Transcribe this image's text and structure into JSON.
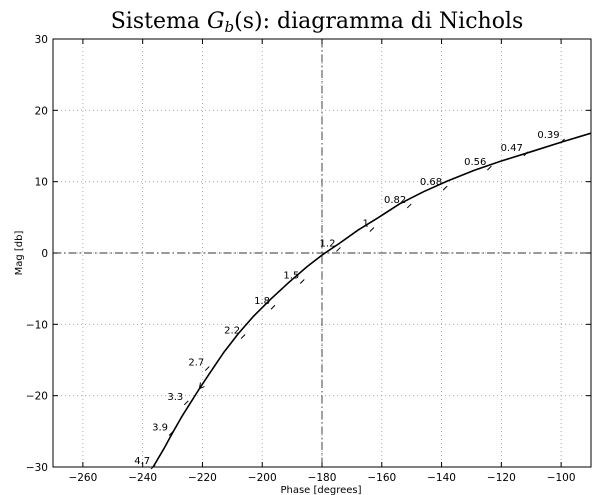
{
  "chart_data": {
    "type": "line",
    "title_prefix": "Sistema ",
    "title_var": "G",
    "title_sub": "b",
    "title_suffix": "(s): diagramma di Nichols",
    "xlabel": "Phase [degrees]",
    "ylabel": "Mag [db]",
    "xlim": [
      -270,
      -90
    ],
    "ylim": [
      -30,
      30
    ],
    "xticks": [
      -260,
      -240,
      -220,
      -200,
      -180,
      -160,
      -140,
      -120,
      -100
    ],
    "yticks": [
      -30,
      -20,
      -10,
      0,
      10,
      20,
      30
    ],
    "xtick_labels": [
      "−260",
      "−240",
      "−220",
      "−200",
      "−180",
      "−160",
      "−140",
      "−120",
      "−100"
    ],
    "ytick_labels": [
      "−30",
      "−20",
      "−10",
      "0",
      "10",
      "20",
      "30"
    ],
    "grid": true,
    "crosshair": {
      "x": -180,
      "y": 0
    },
    "series": [
      {
        "x": [
          -236.5,
          -233,
          -230,
          -227,
          -224,
          -221,
          -217,
          -213,
          -208,
          -203,
          -197,
          -191,
          -185,
          -180,
          -174,
          -168,
          -161,
          -154,
          -146,
          -138,
          -129,
          -120,
          -110,
          -99.5,
          -90
        ],
        "y": [
          -30,
          -27.5,
          -25.2,
          -23.0,
          -21.0,
          -19.0,
          -16.5,
          -14.0,
          -11.3,
          -8.9,
          -6.4,
          -4.1,
          -1.9,
          -0.3,
          1.4,
          3.2,
          5.0,
          6.9,
          8.6,
          10.1,
          11.6,
          12.9,
          14.2,
          15.6,
          16.8
        ]
      }
    ],
    "frequency_labels": [
      {
        "text": "4.7",
        "x": -236.5,
        "y": -30
      },
      {
        "text": "3.9",
        "x": -230.5,
        "y": -25.3
      },
      {
        "text": "3.3",
        "x": -225.4,
        "y": -21.0
      },
      {
        "text": "2.7",
        "x": -218.4,
        "y": -16.2
      },
      {
        "text": "2.2",
        "x": -206.4,
        "y": -11.7
      },
      {
        "text": "1.8",
        "x": -196.4,
        "y": -7.6
      },
      {
        "text": "1.5",
        "x": -186.6,
        "y": -4.0
      },
      {
        "text": "1.2",
        "x": -174.5,
        "y": 0.5
      },
      {
        "text": "1",
        "x": -163.3,
        "y": 3.3
      },
      {
        "text": "0.82",
        "x": -150.8,
        "y": 6.6
      },
      {
        "text": "0.68",
        "x": -138.8,
        "y": 9.1
      },
      {
        "text": "0.56",
        "x": -124.0,
        "y": 11.9
      },
      {
        "text": "0.47",
        "x": -111.8,
        "y": 13.9
      },
      {
        "text": "0.39",
        "x": -99.5,
        "y": 15.7
      }
    ],
    "arrow_at": {
      "x": -221,
      "y": -19
    }
  }
}
